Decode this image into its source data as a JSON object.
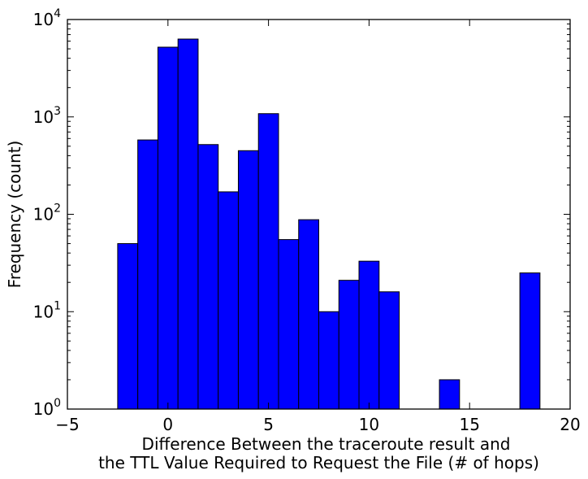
{
  "chart_data": {
    "type": "bar",
    "title": "",
    "xlabel_lines": [
      "Difference Between the traceroute result and",
      "the TTL Value Required to Request the File (# of hops)"
    ],
    "ylabel": "Frequency (count)",
    "xlim": [
      -5,
      20
    ],
    "ylim": [
      1,
      10000
    ],
    "yscale": "log",
    "grid": false,
    "legend": "none",
    "bar_color": "#0000ff",
    "x_ticks": [
      {
        "value": -5,
        "label": "−5"
      },
      {
        "value": 0,
        "label": "0"
      },
      {
        "value": 5,
        "label": "5"
      },
      {
        "value": 10,
        "label": "10"
      },
      {
        "value": 15,
        "label": "15"
      },
      {
        "value": 20,
        "label": "20"
      }
    ],
    "y_ticks": [
      {
        "value": 1,
        "base": "10",
        "exp": "0"
      },
      {
        "value": 10,
        "base": "10",
        "exp": "1"
      },
      {
        "value": 100,
        "base": "10",
        "exp": "2"
      },
      {
        "value": 1000,
        "base": "10",
        "exp": "3"
      },
      {
        "value": 10000,
        "base": "10",
        "exp": "4"
      }
    ],
    "bins": [
      {
        "x0": -2.5,
        "x1": -1.5,
        "value": 50
      },
      {
        "x0": -1.5,
        "x1": -0.5,
        "value": 580
      },
      {
        "x0": -0.5,
        "x1": 0.5,
        "value": 5200
      },
      {
        "x0": 0.5,
        "x1": 1.5,
        "value": 6300
      },
      {
        "x0": 1.5,
        "x1": 2.5,
        "value": 520
      },
      {
        "x0": 2.5,
        "x1": 3.5,
        "value": 170
      },
      {
        "x0": 3.5,
        "x1": 4.5,
        "value": 450
      },
      {
        "x0": 4.5,
        "x1": 5.5,
        "value": 1080
      },
      {
        "x0": 5.5,
        "x1": 6.5,
        "value": 55
      },
      {
        "x0": 6.5,
        "x1": 7.5,
        "value": 88
      },
      {
        "x0": 7.5,
        "x1": 8.5,
        "value": 10
      },
      {
        "x0": 8.5,
        "x1": 9.5,
        "value": 21
      },
      {
        "x0": 9.5,
        "x1": 10.5,
        "value": 33
      },
      {
        "x0": 10.5,
        "x1": 11.5,
        "value": 16
      },
      {
        "x0": 13.5,
        "x1": 14.5,
        "value": 2
      },
      {
        "x0": 17.5,
        "x1": 18.5,
        "value": 25
      }
    ]
  }
}
